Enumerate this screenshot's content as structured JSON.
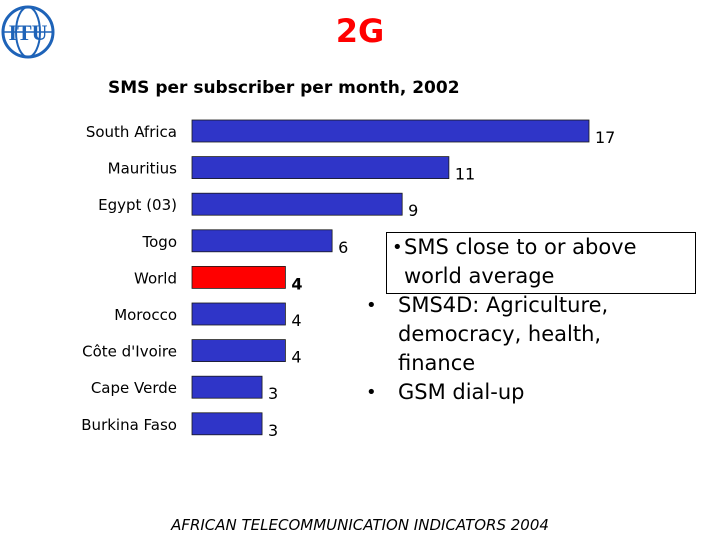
{
  "slide_title": "2G",
  "logo_text": "ITU",
  "colors": {
    "bar": "#2f35c8",
    "highlight": "#ff0000",
    "title": "#ff0000"
  },
  "chart_data": {
    "type": "bar",
    "orientation": "horizontal",
    "title": "SMS per subscriber per month, 2002",
    "categories": [
      "South Africa",
      "Mauritius",
      "Egypt (03)",
      "Togo",
      "World",
      "Morocco",
      "Côte d'Ivoire",
      "Cape Verde",
      "Burkina Faso"
    ],
    "values": [
      17,
      11,
      9,
      6,
      4,
      4,
      4,
      3,
      3
    ],
    "highlight": "World",
    "xlim": [
      0,
      17
    ],
    "grid": false,
    "legend": "none"
  },
  "bullets": [
    "SMS close to or above world average",
    "SMS4D: Agriculture, democracy, health, finance",
    "GSM dial-up"
  ],
  "footer": "AFRICAN TELECOMMUNICATION INDICATORS 2004"
}
